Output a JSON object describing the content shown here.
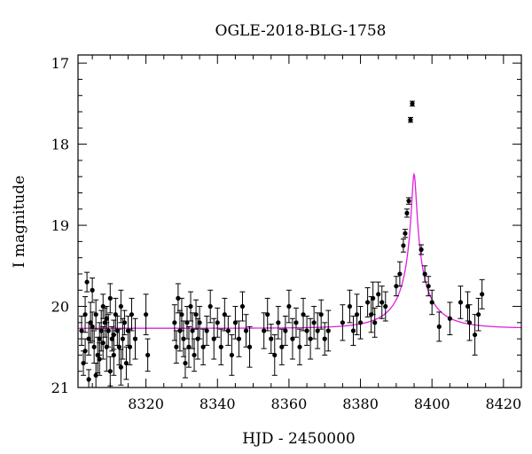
{
  "chart_data": {
    "type": "scatter",
    "title": "OGLE-2018-BLG-1758",
    "xlabel": "HJD - 2450000",
    "ylabel": "I magnitude",
    "xlim": [
      8301,
      8425
    ],
    "ylim": [
      21,
      16.9
    ],
    "y_inverted": true,
    "x_ticks": [
      8320,
      8340,
      8360,
      8380,
      8400,
      8420
    ],
    "y_ticks": [
      17,
      18,
      19,
      20,
      21
    ],
    "grid": false,
    "legend": "none",
    "colors": {
      "data": "#000000",
      "model": "#e020e0"
    },
    "series": [
      {
        "type": "scatter_with_errors",
        "points": [
          [
            8302.0,
            20.3,
            0.18
          ],
          [
            8302.5,
            20.7,
            0.15
          ],
          [
            8303.0,
            20.1,
            0.22
          ],
          [
            8303.5,
            19.7,
            0.12
          ],
          [
            8304.0,
            20.4,
            0.2
          ],
          [
            8304.5,
            20.2,
            0.25
          ],
          [
            8305.0,
            19.8,
            0.15
          ],
          [
            8305.5,
            20.5,
            0.2
          ],
          [
            8306.0,
            20.1,
            0.18
          ],
          [
            8306.5,
            20.6,
            0.22
          ],
          [
            8307.0,
            20.4,
            0.2
          ],
          [
            8307.5,
            20.3,
            0.25
          ],
          [
            8308.0,
            20.0,
            0.15
          ],
          [
            8308.5,
            20.2,
            0.18
          ],
          [
            8309.0,
            20.5,
            0.3
          ],
          [
            8309.5,
            20.3,
            0.2
          ],
          [
            8310.0,
            19.9,
            0.18
          ],
          [
            8310.5,
            20.4,
            0.15
          ],
          [
            8311.0,
            20.6,
            0.25
          ],
          [
            8311.5,
            20.1,
            0.2
          ],
          [
            8312.0,
            20.3,
            0.18
          ],
          [
            8312.5,
            20.5,
            0.22
          ],
          [
            8313.0,
            20.0,
            0.2
          ],
          [
            8313.5,
            20.4,
            0.25
          ],
          [
            8314.0,
            20.2,
            0.15
          ],
          [
            8314.5,
            20.7,
            0.2
          ],
          [
            8315.0,
            20.3,
            0.18
          ],
          [
            8315.5,
            20.5,
            0.22
          ],
          [
            8316.0,
            20.1,
            0.2
          ],
          [
            8317.0,
            20.4,
            0.25
          ],
          [
            8303.0,
            20.55,
            0.15
          ],
          [
            8305.0,
            20.25,
            0.18
          ],
          [
            8307.0,
            20.65,
            0.2
          ],
          [
            8309.0,
            20.15,
            0.15
          ],
          [
            8311.0,
            20.35,
            0.18
          ],
          [
            8313.0,
            20.75,
            0.22
          ],
          [
            8306.0,
            20.85,
            0.15
          ],
          [
            8308.0,
            20.45,
            0.2
          ],
          [
            8304.0,
            20.9,
            0.12
          ],
          [
            8310.0,
            20.8,
            0.18
          ],
          [
            8320.0,
            20.1,
            0.25
          ],
          [
            8320.5,
            20.6,
            0.2
          ],
          [
            8328.0,
            20.2,
            0.22
          ],
          [
            8328.5,
            20.5,
            0.2
          ],
          [
            8329.0,
            19.9,
            0.18
          ],
          [
            8329.5,
            20.3,
            0.25
          ],
          [
            8330.0,
            20.1,
            0.2
          ],
          [
            8330.5,
            20.4,
            0.22
          ],
          [
            8331.0,
            20.7,
            0.18
          ],
          [
            8331.5,
            20.2,
            0.2
          ],
          [
            8332.0,
            20.5,
            0.25
          ],
          [
            8332.5,
            20.0,
            0.18
          ],
          [
            8333.0,
            20.3,
            0.22
          ],
          [
            8333.5,
            20.6,
            0.2
          ],
          [
            8334.0,
            20.1,
            0.18
          ],
          [
            8334.5,
            20.4,
            0.25
          ],
          [
            8335.0,
            20.2,
            0.2
          ],
          [
            8336.0,
            20.5,
            0.22
          ],
          [
            8337.0,
            20.3,
            0.18
          ],
          [
            8338.0,
            20.0,
            0.2
          ],
          [
            8339.0,
            20.4,
            0.25
          ],
          [
            8340.0,
            20.2,
            0.18
          ],
          [
            8341.0,
            20.5,
            0.22
          ],
          [
            8342.0,
            20.1,
            0.2
          ],
          [
            8343.0,
            20.3,
            0.18
          ],
          [
            8344.0,
            20.6,
            0.25
          ],
          [
            8345.0,
            20.2,
            0.2
          ],
          [
            8346.0,
            20.4,
            0.22
          ],
          [
            8347.0,
            20.0,
            0.18
          ],
          [
            8348.0,
            20.3,
            0.2
          ],
          [
            8349.0,
            20.5,
            0.25
          ],
          [
            8353.0,
            20.3,
            0.22
          ],
          [
            8354.0,
            20.1,
            0.2
          ],
          [
            8355.0,
            20.4,
            0.18
          ],
          [
            8356.0,
            20.6,
            0.25
          ],
          [
            8357.0,
            20.2,
            0.2
          ],
          [
            8358.0,
            20.5,
            0.22
          ],
          [
            8359.0,
            20.3,
            0.18
          ],
          [
            8360.0,
            20.0,
            0.2
          ],
          [
            8361.0,
            20.4,
            0.25
          ],
          [
            8362.0,
            20.2,
            0.18
          ],
          [
            8363.0,
            20.5,
            0.22
          ],
          [
            8364.0,
            20.1,
            0.2
          ],
          [
            8365.0,
            20.3,
            0.18
          ],
          [
            8366.0,
            20.4,
            0.25
          ],
          [
            8367.0,
            20.2,
            0.2
          ],
          [
            8368.0,
            20.3,
            0.22
          ],
          [
            8369.0,
            20.1,
            0.18
          ],
          [
            8370.0,
            20.4,
            0.2
          ],
          [
            8371.0,
            20.3,
            0.25
          ],
          [
            8375.0,
            20.2,
            0.22
          ],
          [
            8377.0,
            20.0,
            0.2
          ],
          [
            8378.0,
            20.3,
            0.18
          ],
          [
            8379.0,
            20.1,
            0.25
          ],
          [
            8380.0,
            20.2,
            0.2
          ],
          [
            8382.0,
            19.95,
            0.18
          ],
          [
            8383.0,
            20.1,
            0.22
          ],
          [
            8383.5,
            19.9,
            0.2
          ],
          [
            8384.0,
            20.2,
            0.18
          ],
          [
            8385.0,
            19.85,
            0.15
          ],
          [
            8386.0,
            19.95,
            0.2
          ],
          [
            8387.0,
            20.0,
            0.18
          ],
          [
            8390.0,
            19.75,
            0.12
          ],
          [
            8391.0,
            19.6,
            0.15
          ],
          [
            8392.0,
            19.25,
            0.08
          ],
          [
            8392.5,
            19.1,
            0.05
          ],
          [
            8393.0,
            18.85,
            0.05
          ],
          [
            8393.5,
            18.7,
            0.04
          ],
          [
            8394.0,
            17.7,
            0.03
          ],
          [
            8394.5,
            17.5,
            0.03
          ],
          [
            8397.0,
            19.3,
            0.06
          ],
          [
            8398.0,
            19.6,
            0.1
          ],
          [
            8399.0,
            19.75,
            0.12
          ],
          [
            8400.0,
            19.95,
            0.15
          ],
          [
            8402.0,
            20.25,
            0.18
          ],
          [
            8405.0,
            20.15,
            0.2
          ],
          [
            8408.0,
            19.95,
            0.2
          ],
          [
            8410.0,
            20.0,
            0.18
          ],
          [
            8410.5,
            20.2,
            0.22
          ],
          [
            8412.0,
            20.35,
            0.25
          ],
          [
            8413.0,
            20.1,
            0.2
          ],
          [
            8414.0,
            19.85,
            0.18
          ]
        ]
      },
      {
        "type": "model",
        "params": {
          "t0": 8395.0,
          "u0": 0.05,
          "tE": 12,
          "baseline": 20.27,
          "blend": 0.25
        }
      }
    ]
  }
}
